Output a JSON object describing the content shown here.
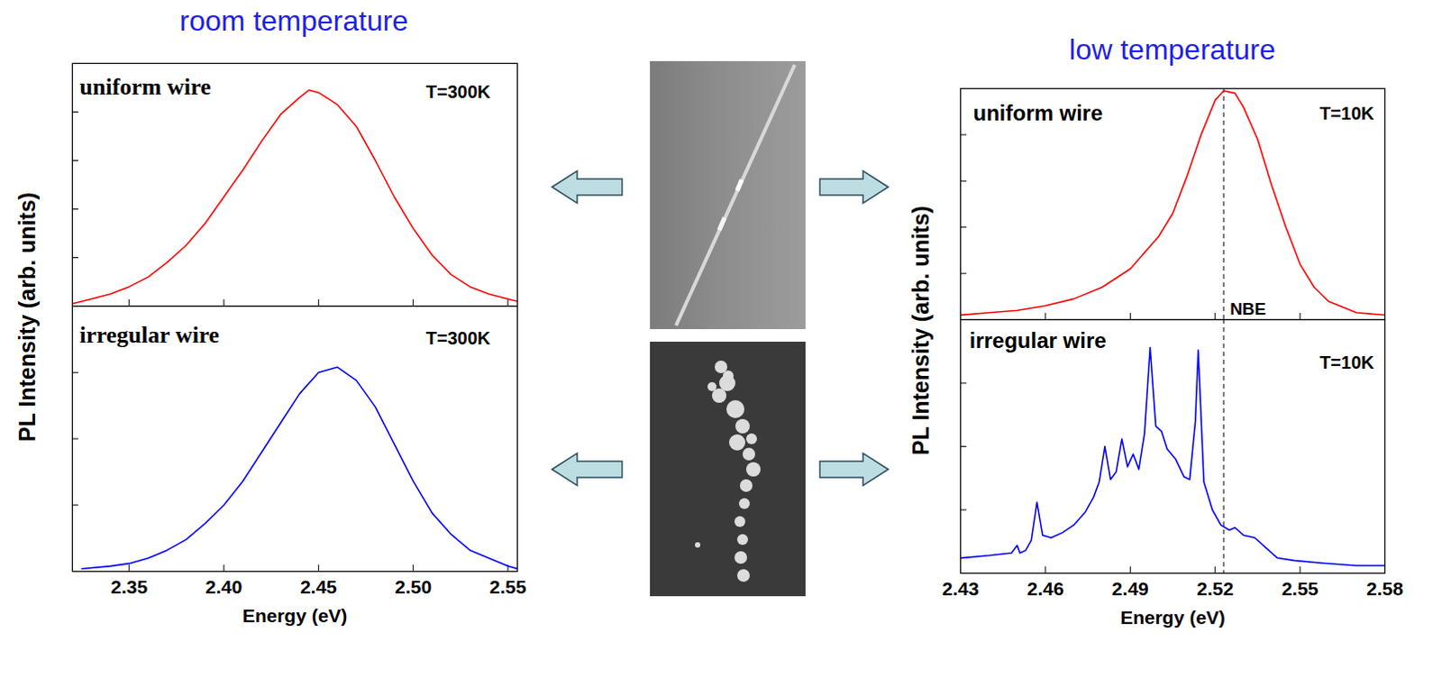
{
  "chart_data": [
    {
      "type": "line",
      "title": "room temperature",
      "ylabel": "PL Intensity (arb. units)",
      "annotations": [
        {
          "text": "uniform wire"
        },
        {
          "text": "T=300K"
        }
      ],
      "x": [
        2.32,
        2.33,
        2.34,
        2.35,
        2.36,
        2.37,
        2.38,
        2.39,
        2.4,
        2.41,
        2.42,
        2.43,
        2.44,
        2.445,
        2.45,
        2.46,
        2.47,
        2.48,
        2.49,
        2.5,
        2.51,
        2.52,
        2.53,
        2.54,
        2.55,
        2.555
      ],
      "values": [
        0.01,
        0.03,
        0.05,
        0.08,
        0.12,
        0.18,
        0.25,
        0.34,
        0.45,
        0.56,
        0.68,
        0.79,
        0.86,
        0.89,
        0.88,
        0.83,
        0.74,
        0.6,
        0.45,
        0.32,
        0.21,
        0.13,
        0.08,
        0.05,
        0.03,
        0.02
      ],
      "color": "#ff0000",
      "xlim": [
        2.32,
        2.555
      ],
      "xticks": [
        2.35,
        {
          "value": 2.4,
          "label": "2.40"
        },
        2.45,
        {
          "value": 2.5,
          "label": "2.50"
        },
        2.55
      ],
      "ylim": [
        0,
        1
      ],
      "yticks": [
        0.2,
        0.4,
        0.6,
        0.8
      ],
      "tick_labels": false
    },
    {
      "type": "line",
      "xlabel": "Energy (eV)",
      "annotations": [
        {
          "text": "irregular wire"
        },
        {
          "text": "T=300K"
        }
      ],
      "x": [
        2.325,
        2.34,
        2.35,
        2.36,
        2.37,
        2.38,
        2.39,
        2.4,
        2.41,
        2.42,
        2.43,
        2.44,
        2.45,
        2.46,
        2.47,
        2.48,
        2.49,
        2.5,
        2.51,
        2.52,
        2.53,
        2.54,
        2.55,
        2.555
      ],
      "values": [
        0.01,
        0.02,
        0.03,
        0.05,
        0.08,
        0.12,
        0.18,
        0.25,
        0.34,
        0.45,
        0.56,
        0.67,
        0.75,
        0.77,
        0.72,
        0.62,
        0.48,
        0.34,
        0.22,
        0.14,
        0.08,
        0.05,
        0.02,
        0.01
      ],
      "color": "#0000ff",
      "xlim": [
        2.32,
        2.555
      ],
      "xticks": [
        2.35,
        {
          "value": 2.4,
          "label": "2.40"
        },
        2.45,
        {
          "value": 2.5,
          "label": "2.50"
        },
        2.55
      ],
      "ylim": [
        0,
        1
      ],
      "yticks": [
        0.25,
        0.5,
        0.75
      ],
      "tick_labels": "x"
    },
    {
      "type": "line",
      "title": "low temperature",
      "ylabel": "PL Intensity (arb. units)",
      "annotations": [
        {
          "text": "uniform wire"
        },
        {
          "text": "T=10K"
        }
      ],
      "reference_lines": [
        {
          "x": 2.523,
          "label": "NBE"
        }
      ],
      "x": [
        2.43,
        2.44,
        2.45,
        2.46,
        2.47,
        2.48,
        2.49,
        2.5,
        2.505,
        2.51,
        2.515,
        2.52,
        2.523,
        2.527,
        2.53,
        2.535,
        2.54,
        2.545,
        2.55,
        2.555,
        2.56,
        2.57,
        2.58
      ],
      "values": [
        0.02,
        0.03,
        0.04,
        0.06,
        0.09,
        0.14,
        0.22,
        0.36,
        0.46,
        0.62,
        0.8,
        0.95,
        0.99,
        0.98,
        0.92,
        0.78,
        0.58,
        0.4,
        0.24,
        0.14,
        0.08,
        0.03,
        0.02
      ],
      "color": "#ff0000",
      "xlim": [
        2.43,
        2.58
      ],
      "xticks": [
        2.43,
        2.46,
        2.49,
        2.52,
        2.55,
        2.58
      ],
      "ylim": [
        0,
        1
      ],
      "yticks": [
        0.2,
        0.4,
        0.6,
        0.8
      ],
      "tick_labels": false
    },
    {
      "type": "line",
      "xlabel": "Energy (eV)",
      "annotations": [
        {
          "text": "irregular wire"
        },
        {
          "text": "T=10K"
        }
      ],
      "reference_lines": [
        {
          "x": 2.523
        }
      ],
      "x": [
        2.43,
        2.44,
        2.448,
        2.45,
        2.451,
        2.453,
        2.455,
        2.457,
        2.459,
        2.462,
        2.466,
        2.47,
        2.474,
        2.477,
        2.479,
        2.481,
        2.483,
        2.485,
        2.487,
        2.489,
        2.491,
        2.493,
        2.495,
        2.497,
        2.499,
        2.501,
        2.503,
        2.506,
        2.509,
        2.511,
        2.513,
        2.514,
        2.516,
        2.519,
        2.522,
        2.525,
        2.527,
        2.53,
        2.534,
        2.538,
        2.542,
        2.548,
        2.558,
        2.57,
        2.58
      ],
      "values": [
        0.06,
        0.07,
        0.08,
        0.11,
        0.08,
        0.09,
        0.13,
        0.28,
        0.15,
        0.14,
        0.16,
        0.19,
        0.24,
        0.3,
        0.36,
        0.5,
        0.37,
        0.4,
        0.53,
        0.42,
        0.47,
        0.41,
        0.55,
        0.89,
        0.58,
        0.56,
        0.49,
        0.45,
        0.38,
        0.37,
        0.6,
        0.88,
        0.36,
        0.25,
        0.19,
        0.17,
        0.18,
        0.15,
        0.14,
        0.1,
        0.06,
        0.05,
        0.04,
        0.03,
        0.03
      ],
      "color": "#0000ff",
      "xlim": [
        2.43,
        2.58
      ],
      "xticks": [
        2.43,
        2.46,
        2.49,
        2.52,
        2.55,
        2.58
      ],
      "ylim": [
        0,
        1
      ],
      "yticks": [
        0.25,
        0.5,
        0.75
      ],
      "tick_labels": "x"
    }
  ]
}
